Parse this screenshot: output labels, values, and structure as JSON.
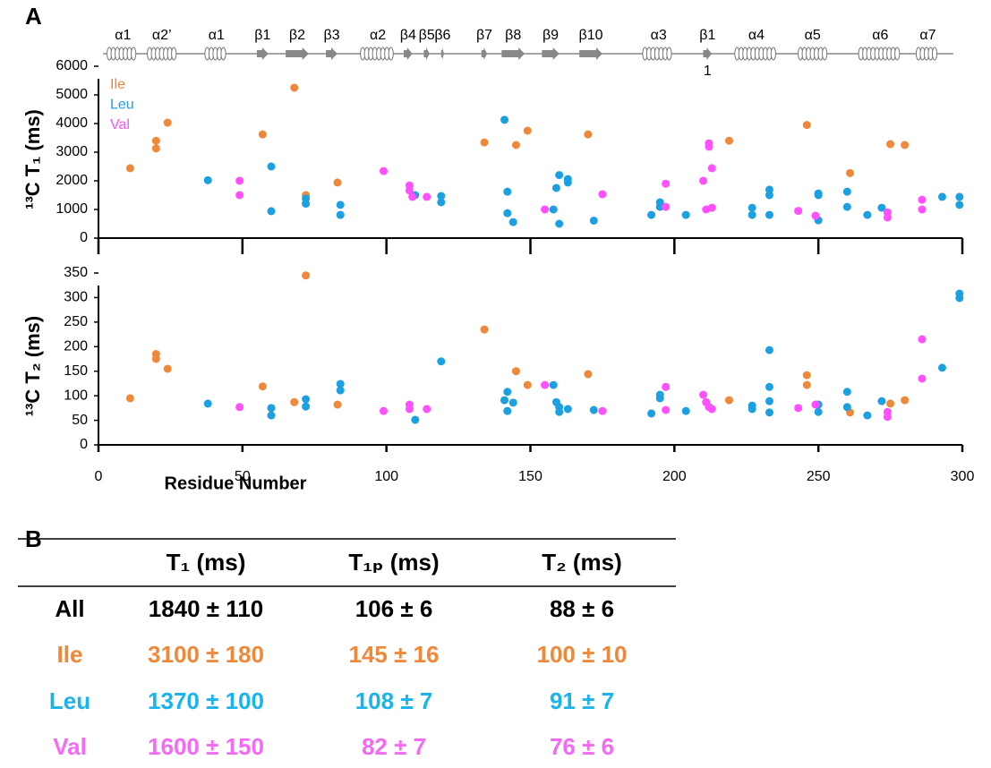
{
  "panels": [
    "A",
    "B"
  ],
  "secondary_structure": [
    {
      "label": "α1",
      "type": "helix",
      "start": 3,
      "end": 14
    },
    {
      "label": "α2’",
      "type": "helix",
      "start": 17,
      "end": 27
    },
    {
      "label": "α1",
      "type": "helix",
      "start": 37,
      "end": 45
    },
    {
      "label": "β1",
      "type": "strand",
      "start": 55,
      "end": 59
    },
    {
      "label": "β2",
      "type": "strand",
      "start": 65,
      "end": 73
    },
    {
      "label": "β3",
      "type": "strand",
      "start": 79,
      "end": 83
    },
    {
      "label": "α2",
      "type": "helix",
      "start": 91,
      "end": 103
    },
    {
      "label": "β4",
      "type": "strand",
      "start": 106,
      "end": 109
    },
    {
      "label": "β5",
      "type": "strand",
      "start": 113,
      "end": 115
    },
    {
      "label": "β6",
      "type": "strand",
      "start": 119,
      "end": 120
    },
    {
      "label": "β7",
      "type": "strand",
      "start": 133,
      "end": 135
    },
    {
      "label": "β8",
      "type": "strand",
      "start": 140,
      "end": 148
    },
    {
      "label": "β9",
      "type": "strand",
      "start": 154,
      "end": 160
    },
    {
      "label": "β10",
      "type": "strand",
      "start": 167,
      "end": 175
    },
    {
      "label": "α3",
      "type": "helix",
      "start": 189,
      "end": 200
    },
    {
      "label": "β1",
      "label2": "1",
      "type": "strand",
      "start": 210,
      "end": 213
    },
    {
      "label": "α4",
      "type": "helix",
      "start": 221,
      "end": 236
    },
    {
      "label": "α5",
      "type": "helix",
      "start": 243,
      "end": 253
    },
    {
      "label": "α6",
      "type": "helix",
      "start": 264,
      "end": 279
    },
    {
      "label": "α7",
      "type": "helix",
      "start": 284,
      "end": 292
    }
  ],
  "chart_data": [
    {
      "type": "scatter",
      "y_label": "¹³C T₁ (ms)",
      "xlim": [
        0,
        300
      ],
      "ylim": [
        0,
        6000
      ],
      "yticks": [
        0,
        1000,
        2000,
        3000,
        4000,
        5000,
        6000
      ],
      "legend": "top-left",
      "series": [
        {
          "name": "Ile",
          "color": "#f0883a",
          "x": [
            11,
            20,
            20,
            24,
            57,
            68,
            72,
            83,
            134,
            145,
            149,
            170,
            219,
            246,
            261,
            275,
            280
          ],
          "values": [
            2440,
            3130,
            3400,
            4030,
            3620,
            5250,
            1500,
            1940,
            3340,
            3250,
            3750,
            3620,
            3400,
            3950,
            2270,
            3280,
            3250
          ]
        },
        {
          "name": "Leu",
          "color": "#1ba1e2",
          "x": [
            38,
            60,
            60,
            72,
            72,
            84,
            84,
            110,
            119,
            119,
            141,
            142,
            142,
            144,
            158,
            159,
            160,
            160,
            163,
            163,
            172,
            192,
            195,
            195,
            204,
            227,
            227,
            233,
            233,
            233,
            250,
            250,
            250,
            260,
            260,
            267,
            272,
            293,
            299,
            299
          ],
          "values": [
            2020,
            2500,
            940,
            1200,
            1380,
            1160,
            810,
            1500,
            1250,
            1470,
            4130,
            1620,
            870,
            560,
            1000,
            1750,
            2200,
            500,
            2060,
            1940,
            610,
            810,
            1250,
            1090,
            810,
            1060,
            810,
            1690,
            1500,
            810,
            1500,
            620,
            1560,
            1620,
            1090,
            810,
            1060,
            1440,
            1440,
            1160
          ]
        },
        {
          "name": "Val",
          "color": "#ff4fff",
          "x": [
            49,
            49,
            99,
            108,
            108,
            109,
            114,
            155,
            175,
            197,
            197,
            210,
            212,
            212,
            213,
            211,
            213,
            243,
            249,
            274,
            274,
            286,
            286
          ],
          "values": [
            2000,
            1500,
            2340,
            1840,
            1660,
            1440,
            1440,
            1000,
            1530,
            1900,
            1090,
            2000,
            3310,
            3190,
            2440,
            1000,
            1060,
            950,
            780,
            900,
            720,
            1340,
            1000
          ]
        }
      ]
    },
    {
      "type": "scatter",
      "y_label": "¹³C T₂ (ms)",
      "x_label": "Residue Number",
      "xlim": [
        0,
        300
      ],
      "xticks": [
        0,
        50,
        100,
        150,
        200,
        250,
        300
      ],
      "ylim": [
        0,
        350
      ],
      "yticks": [
        0,
        50,
        100,
        150,
        200,
        250,
        300,
        350
      ],
      "series": [
        {
          "color": "#f0883a",
          "x": [
            11,
            20,
            20,
            24,
            57,
            68,
            72,
            83,
            134,
            145,
            149,
            170,
            219,
            246,
            246,
            261,
            275,
            280
          ],
          "values": [
            95,
            175,
            185,
            155,
            119,
            87,
            345,
            82,
            235,
            150,
            122,
            144,
            91,
            142,
            122,
            66,
            84,
            91
          ]
        },
        {
          "color": "#1ba1e2",
          "x": [
            38,
            60,
            60,
            72,
            72,
            84,
            84,
            110,
            119,
            141,
            142,
            142,
            144,
            158,
            159,
            160,
            160,
            163,
            172,
            192,
            195,
            195,
            204,
            227,
            227,
            233,
            233,
            233,
            233,
            250,
            250,
            260,
            260,
            267,
            272,
            293,
            299,
            299
          ],
          "values": [
            84,
            75,
            60,
            93,
            78,
            124,
            111,
            51,
            170,
            91,
            108,
            69,
            86,
            122,
            87,
            77,
            67,
            73,
            71,
            64,
            102,
            95,
            69,
            80,
            73,
            193,
            118,
            89,
            66,
            82,
            67,
            108,
            77,
            60,
            89,
            157,
            308,
            299
          ]
        },
        {
          "color": "#ff4fff",
          "x": [
            49,
            99,
            108,
            108,
            114,
            155,
            175,
            197,
            197,
            210,
            211,
            212,
            213,
            243,
            249,
            274,
            274,
            286,
            286
          ],
          "values": [
            77,
            69,
            82,
            73,
            73,
            122,
            69,
            118,
            71,
            102,
            87,
            77,
            73,
            75,
            82,
            67,
            57,
            215,
            135
          ]
        }
      ]
    }
  ],
  "table": {
    "header": [
      "T₁ (ms)",
      "T₁ₚ (ms)",
      "T₂ (ms)"
    ],
    "rows": [
      {
        "label": "All",
        "color": "#000000",
        "cells": [
          "1840 ± 110",
          "106 ± 6",
          "88 ± 6"
        ]
      },
      {
        "label": "Ile",
        "color": "#f0883a",
        "cells": [
          "3100 ± 180",
          "145 ± 16",
          "100 ± 10"
        ]
      },
      {
        "label": "Leu",
        "color": "#1ab4ec",
        "cells": [
          "1370 ± 100",
          "108 ± 7",
          "91 ± 7"
        ]
      },
      {
        "label": "Val",
        "color": "#f46af4",
        "cells": [
          "1600 ± 150",
          "82 ± 7",
          "76 ± 6"
        ]
      }
    ]
  }
}
